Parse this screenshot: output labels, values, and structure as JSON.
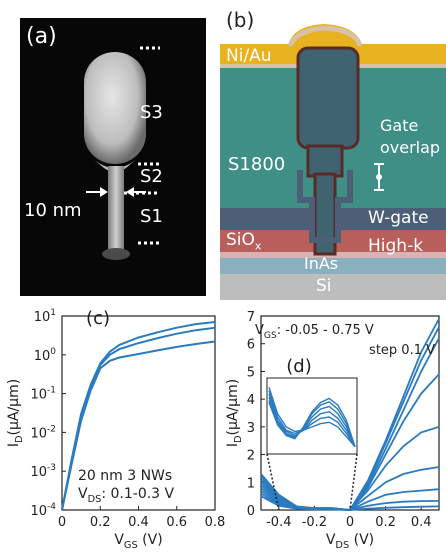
{
  "panel_a": {
    "label": "(a)",
    "segments": [
      "S3",
      "S2",
      "S1"
    ],
    "scale_text": "10 nm"
  },
  "panel_b": {
    "label": "(b)",
    "layers": {
      "contact": "Ni/Au",
      "resist": "S1800",
      "gate": "W-gate",
      "oxide": "SiO",
      "oxide_sub": "x",
      "dielectric": "High-k",
      "nanowire": "InAs",
      "substrate": "Si"
    },
    "annotation_line1": "Gate",
    "annotation_line2": "overlap"
  },
  "chart_data": [
    {
      "id": "c",
      "panel_label": "(c)",
      "type": "line",
      "scale": "log",
      "xlabel": "V",
      "xlabel_sub": "GS",
      "xlabel_unit": " (V)",
      "ylabel": "I",
      "ylabel_sub": "D",
      "ylabel_unit": "(μA/μm)",
      "xlim": [
        0,
        0.8
      ],
      "ylim_exp": [
        -4,
        1
      ],
      "x_ticks": [
        "0",
        "0.2",
        "0.4",
        "0.6",
        "0.8"
      ],
      "y_ticks_exp": [
        "-4",
        "-3",
        "-2",
        "-1",
        "0",
        "1"
      ],
      "annotation_line1": "20 nm 3 NWs",
      "annotation_line2_prefix": "V",
      "annotation_line2_sub": "DS",
      "annotation_line2_suffix": ": 0.1-0.3 V",
      "line_color": "#2a7bbf",
      "series": [
        {
          "x": [
            0.0,
            0.05,
            0.1,
            0.15,
            0.2,
            0.25,
            0.3,
            0.4,
            0.5,
            0.6,
            0.7,
            0.8
          ],
          "y": [
            0.0001,
            0.0015,
            0.02,
            0.12,
            0.45,
            0.7,
            0.85,
            1.05,
            1.3,
            1.6,
            1.9,
            2.2
          ]
        },
        {
          "x": [
            0.0,
            0.05,
            0.1,
            0.15,
            0.2,
            0.25,
            0.3,
            0.4,
            0.5,
            0.6,
            0.7,
            0.8
          ],
          "y": [
            0.0001,
            0.0018,
            0.025,
            0.15,
            0.55,
            1.0,
            1.4,
            2.0,
            2.7,
            3.5,
            4.3,
            5.0
          ]
        },
        {
          "x": [
            0.0,
            0.05,
            0.1,
            0.15,
            0.2,
            0.25,
            0.3,
            0.4,
            0.5,
            0.6,
            0.7,
            0.8
          ],
          "y": [
            0.0001,
            0.002,
            0.03,
            0.17,
            0.6,
            1.2,
            1.8,
            2.8,
            3.8,
            5.0,
            6.2,
            7.0
          ]
        }
      ]
    },
    {
      "id": "d",
      "panel_label": "(d)",
      "type": "line",
      "xlabel": "V",
      "xlabel_sub": "DS",
      "xlabel_unit": " (V)",
      "ylabel": "I",
      "ylabel_sub": "D",
      "ylabel_unit": "(μA/μm)",
      "xlim": [
        -0.5,
        0.5
      ],
      "ylim": [
        0,
        7
      ],
      "x_ticks": [
        "-0.4",
        "-0.2",
        "0",
        "0.2",
        "0.4"
      ],
      "y_ticks": [
        "0",
        "1",
        "2",
        "3",
        "4",
        "5",
        "6",
        "7"
      ],
      "annotation_line1_prefix": "V",
      "annotation_line1_sub": "GS",
      "annotation_line1_suffix": ": -0.05 - 0.75 V",
      "annotation_line2": "step 0.1 V",
      "line_color": "#2a7bbf",
      "series": [
        {
          "x": [
            -0.5,
            -0.4,
            -0.3,
            -0.2,
            -0.1,
            0.0,
            0.1,
            0.2,
            0.3,
            0.4,
            0.5
          ],
          "y": [
            0.5,
            0.15,
            0.05,
            0.02,
            0.02,
            0.0,
            0.05,
            0.08,
            0.1,
            0.12,
            0.13
          ]
        },
        {
          "x": [
            -0.5,
            -0.4,
            -0.3,
            -0.2,
            -0.1,
            0.0,
            0.1,
            0.2,
            0.3,
            0.4,
            0.5
          ],
          "y": [
            0.6,
            0.2,
            0.06,
            0.03,
            0.03,
            0.0,
            0.15,
            0.25,
            0.3,
            0.32,
            0.33
          ]
        },
        {
          "x": [
            -0.5,
            -0.4,
            -0.3,
            -0.2,
            -0.1,
            0.0,
            0.1,
            0.2,
            0.3,
            0.4,
            0.5
          ],
          "y": [
            0.7,
            0.25,
            0.07,
            0.04,
            0.04,
            0.0,
            0.3,
            0.55,
            0.65,
            0.7,
            0.75
          ]
        },
        {
          "x": [
            -0.5,
            -0.4,
            -0.3,
            -0.2,
            -0.1,
            0.0,
            0.1,
            0.2,
            0.3,
            0.4,
            0.5
          ],
          "y": [
            0.8,
            0.3,
            0.08,
            0.05,
            0.05,
            0.0,
            0.5,
            1.0,
            1.3,
            1.45,
            1.55
          ]
        },
        {
          "x": [
            -0.5,
            -0.4,
            -0.3,
            -0.2,
            -0.1,
            0.0,
            0.1,
            0.2,
            0.3,
            0.4,
            0.5
          ],
          "y": [
            0.9,
            0.35,
            0.09,
            0.05,
            0.05,
            0.0,
            0.7,
            1.6,
            2.3,
            2.8,
            3.0
          ]
        },
        {
          "x": [
            -0.5,
            -0.4,
            -0.3,
            -0.2,
            -0.1,
            0.0,
            0.1,
            0.2,
            0.3,
            0.4,
            0.5
          ],
          "y": [
            1.0,
            0.4,
            0.1,
            0.06,
            0.06,
            0.0,
            0.8,
            2.0,
            3.2,
            4.2,
            4.9
          ]
        },
        {
          "x": [
            -0.5,
            -0.4,
            -0.3,
            -0.2,
            -0.1,
            0.0,
            0.1,
            0.2,
            0.3,
            0.4,
            0.5
          ],
          "y": [
            1.1,
            0.45,
            0.11,
            0.06,
            0.06,
            0.0,
            0.9,
            2.2,
            3.6,
            5.0,
            6.2
          ]
        },
        {
          "x": [
            -0.5,
            -0.4,
            -0.3,
            -0.2,
            -0.1,
            0.0,
            0.1,
            0.2,
            0.3,
            0.4,
            0.5
          ],
          "y": [
            1.2,
            0.5,
            0.12,
            0.07,
            0.07,
            0.0,
            1.0,
            2.4,
            3.9,
            5.4,
            6.6
          ]
        },
        {
          "x": [
            -0.5,
            -0.4,
            -0.3,
            -0.2,
            -0.1,
            0.0,
            0.1,
            0.2,
            0.3,
            0.4,
            0.5
          ],
          "y": [
            1.3,
            0.55,
            0.13,
            0.07,
            0.07,
            0.0,
            1.05,
            2.5,
            4.1,
            5.7,
            6.9
          ]
        }
      ],
      "inset": {
        "series_shape": "negative differential resistance peaks",
        "series": [
          [
            0.95,
            0.55,
            0.35,
            0.28,
            0.3,
            0.35,
            0.4,
            0.42,
            0.35,
            0.2,
            0.05
          ],
          [
            0.9,
            0.5,
            0.3,
            0.25,
            0.3,
            0.4,
            0.48,
            0.5,
            0.42,
            0.25,
            0.05
          ],
          [
            0.85,
            0.45,
            0.28,
            0.22,
            0.3,
            0.45,
            0.55,
            0.58,
            0.48,
            0.3,
            0.05
          ],
          [
            0.8,
            0.42,
            0.25,
            0.2,
            0.32,
            0.5,
            0.62,
            0.66,
            0.55,
            0.35,
            0.05
          ],
          [
            0.75,
            0.4,
            0.23,
            0.18,
            0.34,
            0.55,
            0.68,
            0.73,
            0.62,
            0.4,
            0.05
          ],
          [
            0.72,
            0.38,
            0.22,
            0.17,
            0.35,
            0.58,
            0.72,
            0.78,
            0.68,
            0.45,
            0.05
          ]
        ]
      }
    }
  ]
}
